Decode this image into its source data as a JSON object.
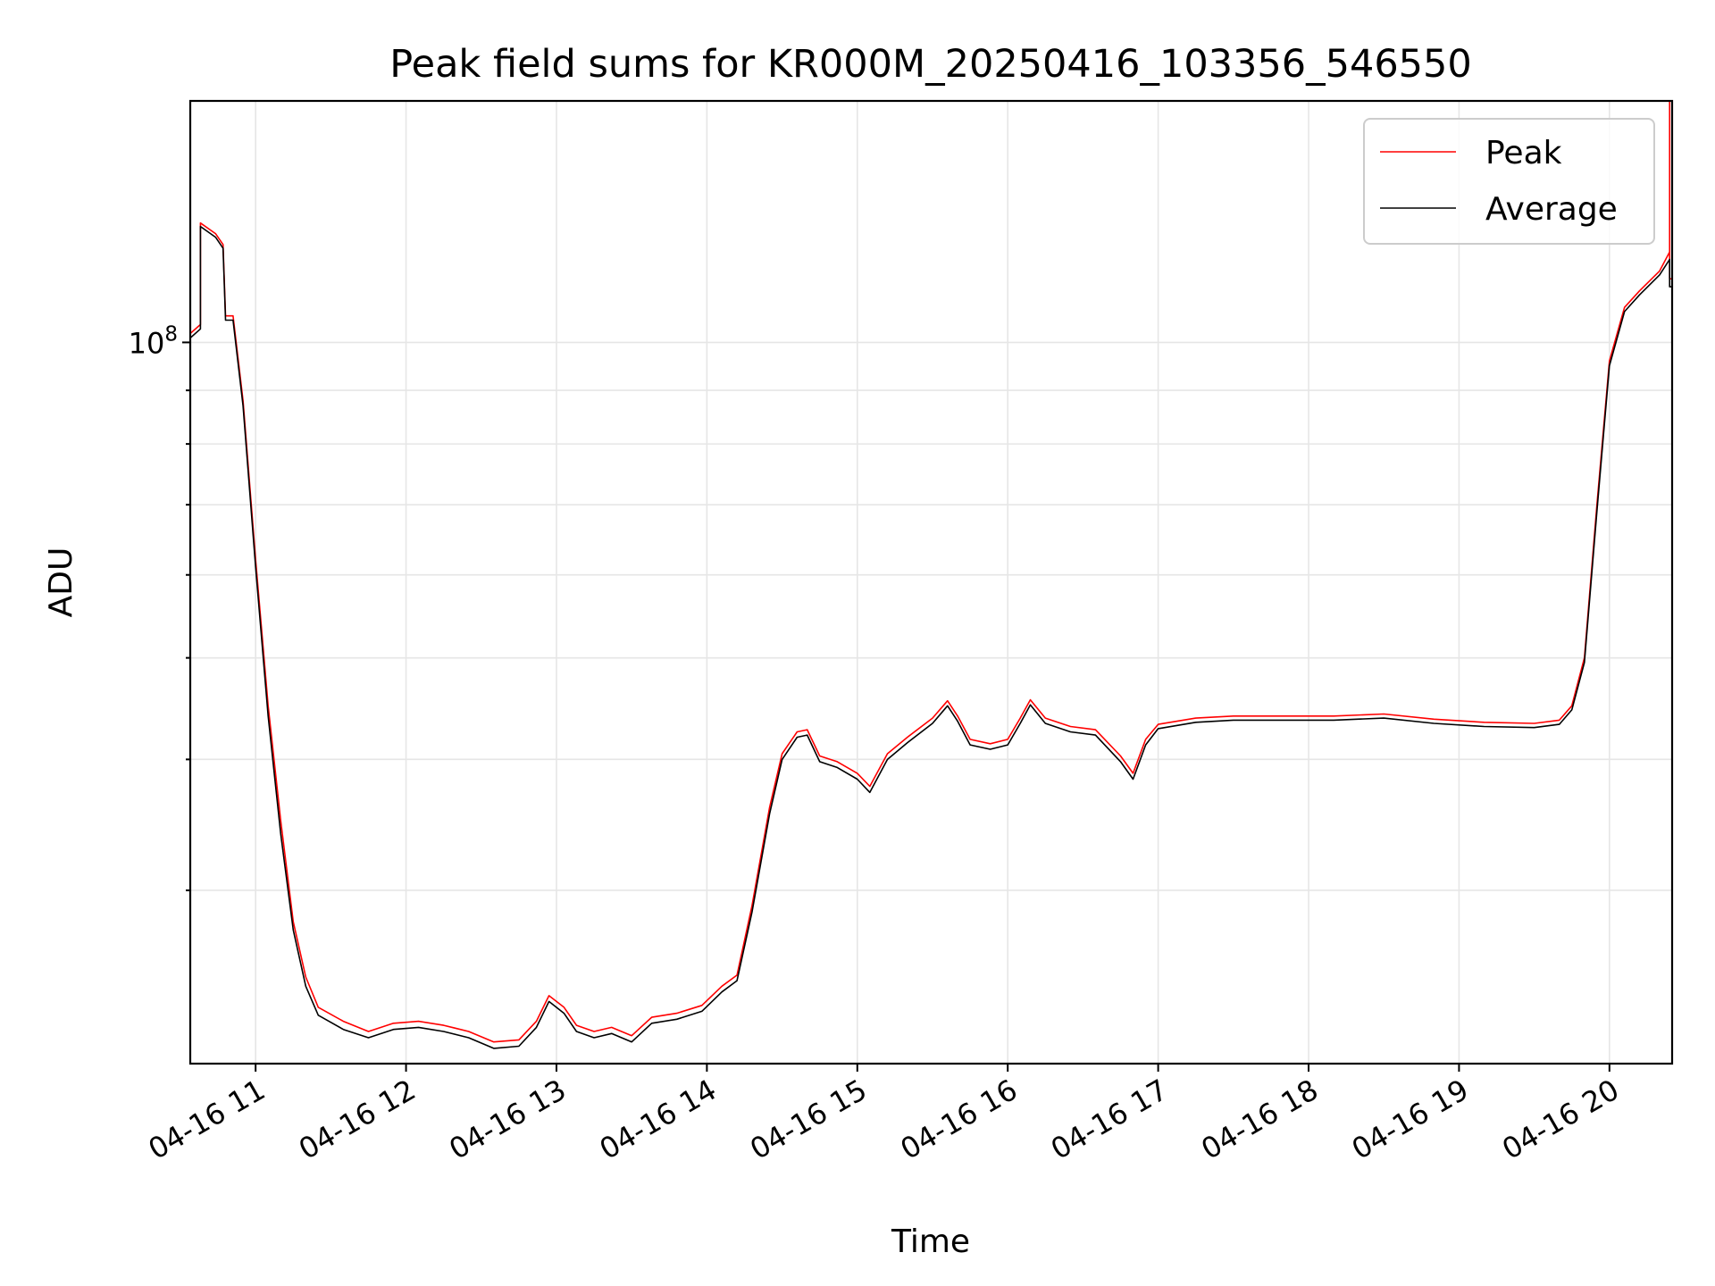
{
  "chart_data": {
    "type": "line",
    "title": "Peak field sums for KR000M_20250416_103356_546550",
    "xlabel": "Time",
    "ylabel": "ADU",
    "x_type": "time",
    "y_scale": "log",
    "xlim": [
      "2025-04-16 10:33:56",
      "2025-04-16 20:25:00"
    ],
    "ylim": [
      20500000,
      170000000
    ],
    "grid": true,
    "legend_position": "upper right",
    "x_ticks": [
      {
        "value": "2025-04-16 11:00",
        "label": "04-16 11"
      },
      {
        "value": "2025-04-16 12:00",
        "label": "04-16 12"
      },
      {
        "value": "2025-04-16 13:00",
        "label": "04-16 13"
      },
      {
        "value": "2025-04-16 14:00",
        "label": "04-16 14"
      },
      {
        "value": "2025-04-16 15:00",
        "label": "04-16 15"
      },
      {
        "value": "2025-04-16 16:00",
        "label": "04-16 16"
      },
      {
        "value": "2025-04-16 17:00",
        "label": "04-16 17"
      },
      {
        "value": "2025-04-16 18:00",
        "label": "04-16 18"
      },
      {
        "value": "2025-04-16 19:00",
        "label": "04-16 19"
      },
      {
        "value": "2025-04-16 20:00",
        "label": "04-16 20"
      }
    ],
    "y_major_ticks": [
      {
        "value": 100000000,
        "base": "10",
        "exponent": "8"
      }
    ],
    "y_minor_ticks": [
      30000000,
      40000000,
      50000000,
      60000000,
      70000000,
      80000000,
      90000000
    ],
    "series": [
      {
        "name": "Peak",
        "color": "#ff0000",
        "points": [
          [
            "2025-04-16 10:34",
            102000000
          ],
          [
            "2025-04-16 10:38",
            104000000
          ],
          [
            "2025-04-16 10:38",
            130000000
          ],
          [
            "2025-04-16 10:44",
            127000000
          ],
          [
            "2025-04-16 10:47",
            124000000
          ],
          [
            "2025-04-16 10:48",
            106000000
          ],
          [
            "2025-04-16 10:51",
            106000000
          ],
          [
            "2025-04-16 10:55",
            88000000
          ],
          [
            "2025-04-16 11:00",
            62000000
          ],
          [
            "2025-04-16 11:05",
            45000000
          ],
          [
            "2025-04-16 11:10",
            35000000
          ],
          [
            "2025-04-16 11:15",
            28000000
          ],
          [
            "2025-04-16 11:20",
            24800000
          ],
          [
            "2025-04-16 11:25",
            23200000
          ],
          [
            "2025-04-16 11:35",
            22500000
          ],
          [
            "2025-04-16 11:45",
            22000000
          ],
          [
            "2025-04-16 11:55",
            22400000
          ],
          [
            "2025-04-16 12:05",
            22500000
          ],
          [
            "2025-04-16 12:15",
            22300000
          ],
          [
            "2025-04-16 12:25",
            22000000
          ],
          [
            "2025-04-16 12:35",
            21500000
          ],
          [
            "2025-04-16 12:45",
            21600000
          ],
          [
            "2025-04-16 12:52",
            22500000
          ],
          [
            "2025-04-16 12:57",
            23800000
          ],
          [
            "2025-04-16 13:03",
            23200000
          ],
          [
            "2025-04-16 13:08",
            22300000
          ],
          [
            "2025-04-16 13:15",
            22000000
          ],
          [
            "2025-04-16 13:22",
            22200000
          ],
          [
            "2025-04-16 13:30",
            21800000
          ],
          [
            "2025-04-16 13:38",
            22700000
          ],
          [
            "2025-04-16 13:48",
            22900000
          ],
          [
            "2025-04-16 13:58",
            23300000
          ],
          [
            "2025-04-16 14:06",
            24300000
          ],
          [
            "2025-04-16 14:12",
            24900000
          ],
          [
            "2025-04-16 14:18",
            29000000
          ],
          [
            "2025-04-16 14:25",
            36000000
          ],
          [
            "2025-04-16 14:30",
            40500000
          ],
          [
            "2025-04-16 14:36",
            42500000
          ],
          [
            "2025-04-16 14:40",
            42700000
          ],
          [
            "2025-04-16 14:45",
            40300000
          ],
          [
            "2025-04-16 14:52",
            39800000
          ],
          [
            "2025-04-16 15:00",
            38800000
          ],
          [
            "2025-04-16 15:05",
            37700000
          ],
          [
            "2025-04-16 15:12",
            40500000
          ],
          [
            "2025-04-16 15:20",
            42000000
          ],
          [
            "2025-04-16 15:30",
            43800000
          ],
          [
            "2025-04-16 15:36",
            45500000
          ],
          [
            "2025-04-16 15:40",
            44000000
          ],
          [
            "2025-04-16 15:45",
            41800000
          ],
          [
            "2025-04-16 15:53",
            41400000
          ],
          [
            "2025-04-16 16:00",
            41800000
          ],
          [
            "2025-04-16 16:05",
            43800000
          ],
          [
            "2025-04-16 16:09",
            45600000
          ],
          [
            "2025-04-16 16:15",
            43800000
          ],
          [
            "2025-04-16 16:25",
            43000000
          ],
          [
            "2025-04-16 16:35",
            42700000
          ],
          [
            "2025-04-16 16:45",
            40300000
          ],
          [
            "2025-04-16 16:50",
            38800000
          ],
          [
            "2025-04-16 16:55",
            41800000
          ],
          [
            "2025-04-16 17:00",
            43200000
          ],
          [
            "2025-04-16 17:15",
            43800000
          ],
          [
            "2025-04-16 17:30",
            44000000
          ],
          [
            "2025-04-16 17:50",
            44000000
          ],
          [
            "2025-04-16 18:10",
            44000000
          ],
          [
            "2025-04-16 18:30",
            44200000
          ],
          [
            "2025-04-16 18:50",
            43700000
          ],
          [
            "2025-04-16 19:10",
            43400000
          ],
          [
            "2025-04-16 19:30",
            43300000
          ],
          [
            "2025-04-16 19:40",
            43600000
          ],
          [
            "2025-04-16 19:45",
            45000000
          ],
          [
            "2025-04-16 19:50",
            50000000
          ],
          [
            "2025-04-16 19:55",
            70000000
          ],
          [
            "2025-04-16 20:00",
            96000000
          ],
          [
            "2025-04-16 20:06",
            108000000
          ],
          [
            "2025-04-16 20:12",
            112000000
          ],
          [
            "2025-04-16 20:20",
            117000000
          ],
          [
            "2025-04-16 20:24",
            122000000
          ],
          [
            "2025-04-16 20:24",
            170000000
          ],
          [
            "2025-04-16 20:24",
            115000000
          ],
          [
            "2025-04-16 20:25",
            115000000
          ]
        ]
      },
      {
        "name": "Average",
        "color": "#000000",
        "points": [
          [
            "2025-04-16 10:34",
            101000000
          ],
          [
            "2025-04-16 10:38",
            103000000
          ],
          [
            "2025-04-16 10:38",
            129000000
          ],
          [
            "2025-04-16 10:44",
            126000000
          ],
          [
            "2025-04-16 10:47",
            123000000
          ],
          [
            "2025-04-16 10:48",
            105000000
          ],
          [
            "2025-04-16 10:51",
            105000000
          ],
          [
            "2025-04-16 10:55",
            87000000
          ],
          [
            "2025-04-16 11:00",
            61000000
          ],
          [
            "2025-04-16 11:05",
            44000000
          ],
          [
            "2025-04-16 11:10",
            34000000
          ],
          [
            "2025-04-16 11:15",
            27500000
          ],
          [
            "2025-04-16 11:20",
            24300000
          ],
          [
            "2025-04-16 11:25",
            22800000
          ],
          [
            "2025-04-16 11:35",
            22100000
          ],
          [
            "2025-04-16 11:45",
            21700000
          ],
          [
            "2025-04-16 11:55",
            22100000
          ],
          [
            "2025-04-16 12:05",
            22200000
          ],
          [
            "2025-04-16 12:15",
            22000000
          ],
          [
            "2025-04-16 12:25",
            21700000
          ],
          [
            "2025-04-16 12:35",
            21200000
          ],
          [
            "2025-04-16 12:45",
            21300000
          ],
          [
            "2025-04-16 12:52",
            22200000
          ],
          [
            "2025-04-16 12:57",
            23500000
          ],
          [
            "2025-04-16 13:03",
            22900000
          ],
          [
            "2025-04-16 13:08",
            22000000
          ],
          [
            "2025-04-16 13:15",
            21700000
          ],
          [
            "2025-04-16 13:22",
            21900000
          ],
          [
            "2025-04-16 13:30",
            21500000
          ],
          [
            "2025-04-16 13:38",
            22400000
          ],
          [
            "2025-04-16 13:48",
            22600000
          ],
          [
            "2025-04-16 13:58",
            23000000
          ],
          [
            "2025-04-16 14:06",
            24000000
          ],
          [
            "2025-04-16 14:12",
            24600000
          ],
          [
            "2025-04-16 14:18",
            28600000
          ],
          [
            "2025-04-16 14:25",
            35500000
          ],
          [
            "2025-04-16 14:30",
            40000000
          ],
          [
            "2025-04-16 14:36",
            42000000
          ],
          [
            "2025-04-16 14:40",
            42200000
          ],
          [
            "2025-04-16 14:45",
            39800000
          ],
          [
            "2025-04-16 14:52",
            39300000
          ],
          [
            "2025-04-16 15:00",
            38300000
          ],
          [
            "2025-04-16 15:05",
            37200000
          ],
          [
            "2025-04-16 15:12",
            40000000
          ],
          [
            "2025-04-16 15:20",
            41500000
          ],
          [
            "2025-04-16 15:30",
            43300000
          ],
          [
            "2025-04-16 15:36",
            45000000
          ],
          [
            "2025-04-16 15:40",
            43500000
          ],
          [
            "2025-04-16 15:45",
            41300000
          ],
          [
            "2025-04-16 15:53",
            40900000
          ],
          [
            "2025-04-16 16:00",
            41300000
          ],
          [
            "2025-04-16 16:05",
            43300000
          ],
          [
            "2025-04-16 16:09",
            45100000
          ],
          [
            "2025-04-16 16:15",
            43300000
          ],
          [
            "2025-04-16 16:25",
            42500000
          ],
          [
            "2025-04-16 16:35",
            42200000
          ],
          [
            "2025-04-16 16:45",
            39800000
          ],
          [
            "2025-04-16 16:50",
            38300000
          ],
          [
            "2025-04-16 16:55",
            41300000
          ],
          [
            "2025-04-16 17:00",
            42800000
          ],
          [
            "2025-04-16 17:15",
            43400000
          ],
          [
            "2025-04-16 17:30",
            43600000
          ],
          [
            "2025-04-16 17:50",
            43600000
          ],
          [
            "2025-04-16 18:10",
            43600000
          ],
          [
            "2025-04-16 18:30",
            43800000
          ],
          [
            "2025-04-16 18:50",
            43300000
          ],
          [
            "2025-04-16 19:10",
            43000000
          ],
          [
            "2025-04-16 19:30",
            42900000
          ],
          [
            "2025-04-16 19:40",
            43200000
          ],
          [
            "2025-04-16 19:45",
            44600000
          ],
          [
            "2025-04-16 19:50",
            49500000
          ],
          [
            "2025-04-16 19:55",
            69000000
          ],
          [
            "2025-04-16 20:00",
            95000000
          ],
          [
            "2025-04-16 20:06",
            107000000
          ],
          [
            "2025-04-16 20:12",
            111000000
          ],
          [
            "2025-04-16 20:20",
            116000000
          ],
          [
            "2025-04-16 20:24",
            120000000
          ],
          [
            "2025-04-16 20:24",
            113000000
          ],
          [
            "2025-04-16 20:25",
            113000000
          ]
        ]
      }
    ]
  }
}
